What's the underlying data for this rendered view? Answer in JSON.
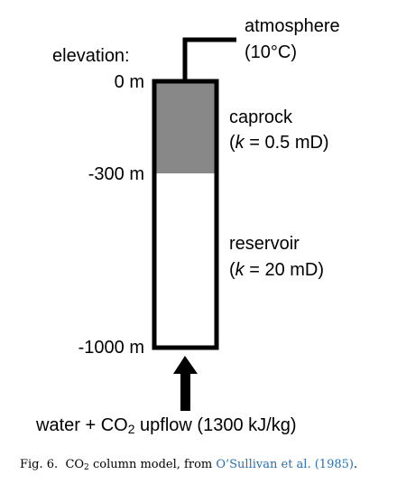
{
  "labels": {
    "atmosphere_line1": "atmosphere",
    "atmosphere_line2": "(10°C)",
    "elevation_heading": "elevation:",
    "elev_top": "0 m",
    "elev_caprock_base": "-300 m",
    "elev_bottom": "-1000 m",
    "caprock_name": "caprock",
    "caprock_k_open": "(",
    "caprock_k_sym": "k",
    "caprock_k_rest": " = 0.5 mD)",
    "reservoir_name": "reservoir",
    "reservoir_k_open": "(",
    "reservoir_k_sym": "k",
    "reservoir_k_rest": " = 20 mD)",
    "upflow_pre": "water + CO",
    "upflow_sub": "2",
    "upflow_post": " upflow (1300 kJ/kg)"
  },
  "caption": {
    "fig_label": "Fig. 6.",
    "co": "CO",
    "co_sub": "2",
    "text": " column model, from ",
    "citation": "O’Sullivan et al. (1985)",
    "end": "."
  },
  "colors": {
    "caprock_fill": "#888888",
    "reservoir_fill": "#ffffff",
    "outline": "#000000",
    "citation_link": "#2a6fb0"
  }
}
